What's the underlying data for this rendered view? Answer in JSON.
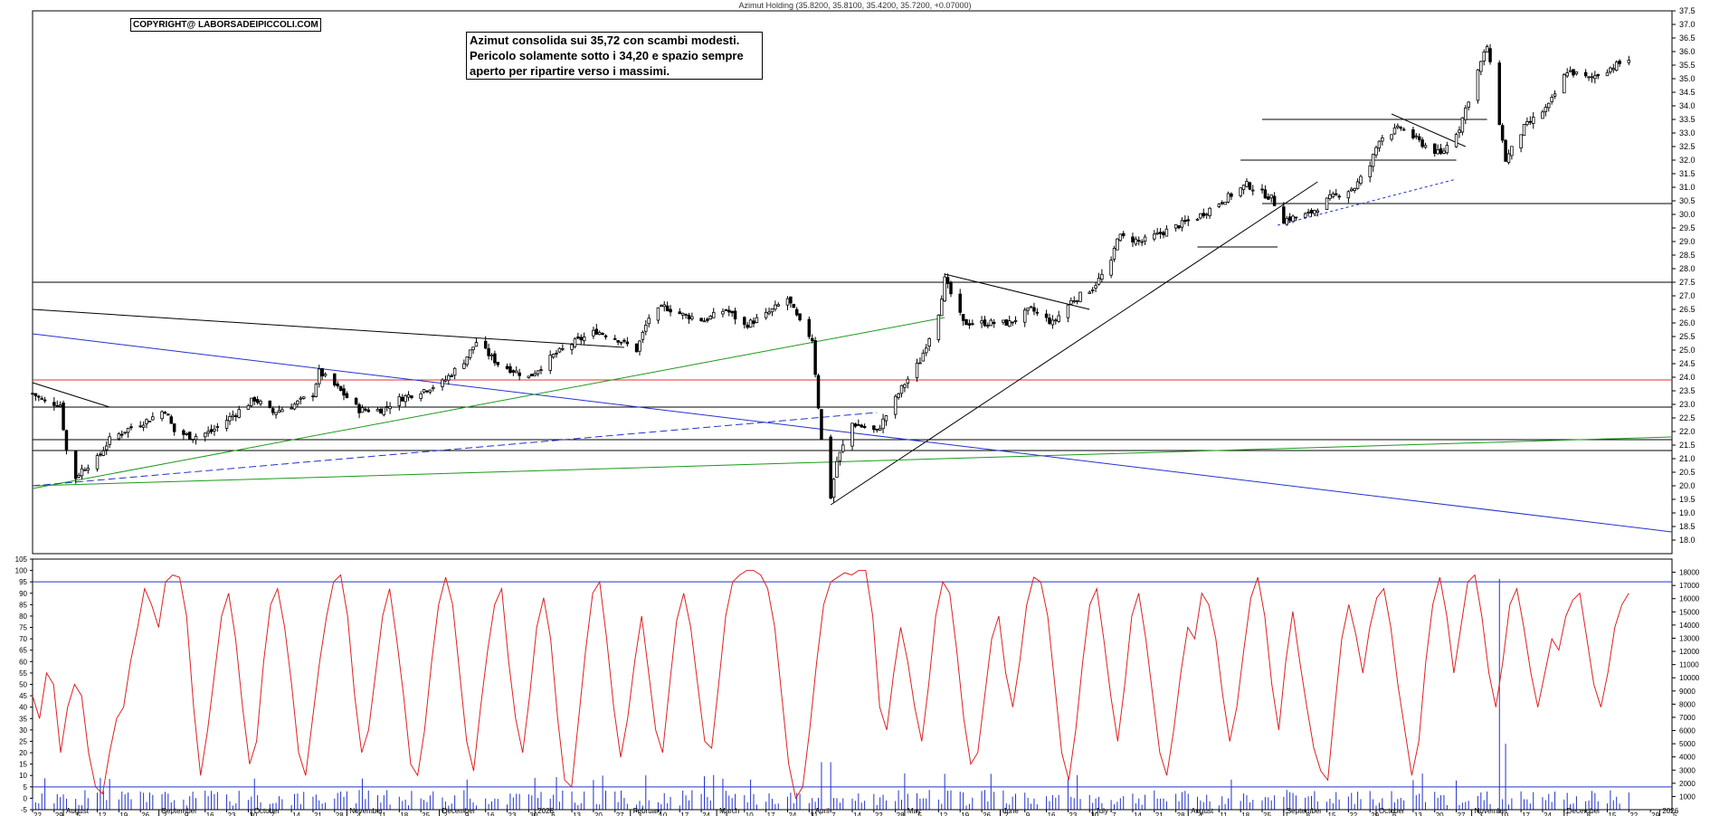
{
  "header": {
    "title": "Azimut Holding (35.8200, 35.8100, 35.4200, 35.7200, +0.07000)"
  },
  "copyright": "COPYRIGHT@ LABORSADEIPICCOLI.COM",
  "annotation": {
    "lines": [
      "Azimut consolida sui 35,72 con scambi modesti.",
      "Pericolo solamente sotto i 34,20 e spazio sempre",
      "aperto per ripartire verso i massimi."
    ]
  },
  "chart_data": [
    {
      "type": "candlestick",
      "title": "Azimut Holding (35.8200, 35.8100, 35.4200, 35.7200, +0.07000)",
      "ylim": [
        17.5,
        37.5
      ],
      "y_ticks": [
        18.0,
        18.5,
        19.0,
        19.5,
        20.0,
        20.5,
        21.0,
        21.5,
        22.0,
        22.5,
        23.0,
        23.5,
        24.0,
        24.5,
        25.0,
        25.5,
        26.0,
        26.5,
        27.0,
        27.5,
        28.0,
        28.5,
        29.0,
        29.5,
        30.0,
        30.5,
        31.0,
        31.5,
        32.0,
        32.5,
        33.0,
        33.5,
        34.0,
        34.5,
        35.0,
        35.5,
        36.0,
        36.5,
        37.0,
        37.5
      ],
      "price_path": [
        [
          "2024-07-22",
          23.4
        ],
        [
          "2024-07-26",
          23.1
        ],
        [
          "2024-07-31",
          23.0
        ],
        [
          "2024-08-02",
          21.3
        ],
        [
          "2024-08-05",
          20.3
        ],
        [
          "2024-08-07",
          20.6
        ],
        [
          "2024-08-12",
          21.0
        ],
        [
          "2024-08-16",
          21.7
        ],
        [
          "2024-08-22",
          22.1
        ],
        [
          "2024-08-28",
          22.4
        ],
        [
          "2024-09-03",
          22.8
        ],
        [
          "2024-09-06",
          22.0
        ],
        [
          "2024-09-12",
          21.8
        ],
        [
          "2024-09-18",
          22.0
        ],
        [
          "2024-09-25",
          22.6
        ],
        [
          "2024-10-02",
          23.2
        ],
        [
          "2024-10-08",
          22.7
        ],
        [
          "2024-10-15",
          23.0
        ],
        [
          "2024-10-21",
          23.4
        ],
        [
          "2024-10-23",
          24.2
        ],
        [
          "2024-10-29",
          23.6
        ],
        [
          "2024-11-05",
          22.8
        ],
        [
          "2024-11-12",
          22.8
        ],
        [
          "2024-11-18",
          23.2
        ],
        [
          "2024-11-25",
          23.5
        ],
        [
          "2024-12-02",
          23.8
        ],
        [
          "2024-12-09",
          24.6
        ],
        [
          "2024-12-13",
          25.3
        ],
        [
          "2024-12-20",
          24.5
        ],
        [
          "2024-12-30",
          24.0
        ],
        [
          "2025-01-07",
          24.8
        ],
        [
          "2025-01-14",
          25.3
        ],
        [
          "2025-01-21",
          25.7
        ],
        [
          "2025-01-28",
          25.4
        ],
        [
          "2025-02-03",
          25.0
        ],
        [
          "2025-02-07",
          26.2
        ],
        [
          "2025-02-12",
          26.6
        ],
        [
          "2025-02-18",
          26.3
        ],
        [
          "2025-02-25",
          26.1
        ],
        [
          "2025-03-04",
          26.5
        ],
        [
          "2025-03-10",
          25.9
        ],
        [
          "2025-03-17",
          26.3
        ],
        [
          "2025-03-24",
          26.9
        ],
        [
          "2025-03-28",
          26.0
        ],
        [
          "2025-04-01",
          25.4
        ],
        [
          "2025-04-04",
          21.7
        ],
        [
          "2025-04-07",
          19.6
        ],
        [
          "2025-04-09",
          20.9
        ],
        [
          "2025-04-14",
          22.3
        ],
        [
          "2025-04-22",
          22.0
        ],
        [
          "2025-04-30",
          23.6
        ],
        [
          "2025-05-06",
          24.6
        ],
        [
          "2025-05-12",
          26.4
        ],
        [
          "2025-05-14",
          27.6
        ],
        [
          "2025-05-20",
          26.0
        ],
        [
          "2025-05-28",
          26.0
        ],
        [
          "2025-06-04",
          26.0
        ],
        [
          "2025-06-11",
          26.5
        ],
        [
          "2025-06-18",
          26.0
        ],
        [
          "2025-06-24",
          26.8
        ],
        [
          "2025-07-01",
          27.3
        ],
        [
          "2025-07-07",
          28.2
        ],
        [
          "2025-07-09",
          29.2
        ],
        [
          "2025-07-17",
          29.0
        ],
        [
          "2025-07-25",
          29.4
        ],
        [
          "2025-08-04",
          29.9
        ],
        [
          "2025-08-12",
          30.5
        ],
        [
          "2025-08-20",
          31.1
        ],
        [
          "2025-08-28",
          30.6
        ],
        [
          "2025-09-01",
          29.8
        ],
        [
          "2025-09-09",
          30.0
        ],
        [
          "2025-09-16",
          30.6
        ],
        [
          "2025-09-24",
          31.0
        ],
        [
          "2025-09-29",
          31.8
        ],
        [
          "2025-10-02",
          32.8
        ],
        [
          "2025-10-09",
          33.2
        ],
        [
          "2025-10-16",
          32.6
        ],
        [
          "2025-10-22",
          32.2
        ],
        [
          "2025-10-28",
          33.2
        ],
        [
          "2025-11-03",
          35.3
        ],
        [
          "2025-11-06",
          36.2
        ],
        [
          "2025-11-12",
          32.0
        ],
        [
          "2025-11-18",
          33.2
        ],
        [
          "2025-11-26",
          34.0
        ],
        [
          "2025-12-02",
          35.3
        ],
        [
          "2025-12-09",
          35.0
        ],
        [
          "2025-12-16",
          35.4
        ],
        [
          "2025-12-22",
          35.72
        ]
      ],
      "last": {
        "open": 35.82,
        "high": 35.81,
        "low": 35.42,
        "close": 35.72,
        "change": 0.07
      }
    },
    {
      "type": "line",
      "name": "stochastic",
      "ylim": [
        -5,
        105
      ],
      "y_ticks": [
        -5,
        0,
        5,
        10,
        15,
        20,
        25,
        30,
        35,
        40,
        45,
        50,
        55,
        60,
        65,
        70,
        75,
        80,
        85,
        90,
        95,
        100,
        105
      ],
      "levels": [
        5,
        95
      ],
      "values": [
        45,
        35,
        55,
        50,
        20,
        40,
        50,
        45,
        20,
        5,
        2,
        20,
        35,
        40,
        60,
        75,
        92,
        85,
        75,
        95,
        98,
        97,
        80,
        40,
        10,
        30,
        55,
        80,
        90,
        70,
        40,
        15,
        25,
        60,
        85,
        92,
        75,
        50,
        20,
        10,
        35,
        60,
        80,
        95,
        98,
        80,
        45,
        20,
        30,
        55,
        80,
        92,
        70,
        45,
        15,
        10,
        30,
        60,
        85,
        97,
        85,
        55,
        25,
        12,
        40,
        65,
        85,
        92,
        60,
        35,
        20,
        45,
        75,
        88,
        70,
        35,
        8,
        5,
        35,
        65,
        90,
        95,
        70,
        40,
        18,
        35,
        60,
        80,
        55,
        30,
        20,
        50,
        78,
        90,
        75,
        50,
        25,
        22,
        50,
        80,
        95,
        98,
        100,
        100,
        98,
        92,
        75,
        45,
        15,
        0,
        5,
        30,
        60,
        85,
        95,
        97,
        99,
        98,
        100,
        100,
        80,
        40,
        30,
        55,
        75,
        60,
        40,
        25,
        50,
        80,
        95,
        90,
        65,
        35,
        15,
        20,
        45,
        70,
        80,
        55,
        40,
        60,
        85,
        97,
        95,
        80,
        50,
        20,
        8,
        30,
        60,
        85,
        92,
        70,
        45,
        25,
        50,
        80,
        90,
        70,
        45,
        20,
        10,
        30,
        55,
        75,
        70,
        90,
        85,
        70,
        45,
        25,
        40,
        65,
        88,
        97,
        80,
        50,
        30,
        60,
        82,
        60,
        40,
        22,
        12,
        8,
        40,
        70,
        85,
        72,
        55,
        75,
        88,
        92,
        75,
        50,
        30,
        10,
        25,
        60,
        85,
        97,
        80,
        55,
        75,
        95,
        98,
        80,
        55,
        40,
        60,
        85,
        92,
        75,
        55,
        40,
        55,
        70,
        65,
        80,
        87,
        90,
        70,
        50,
        40,
        55,
        75,
        85,
        90
      ]
    },
    {
      "type": "bar",
      "name": "volume",
      "ylim": [
        0,
        19000
      ],
      "y_ticks": [
        1000,
        2000,
        3000,
        4000,
        5000,
        6000,
        7000,
        8000,
        9000,
        10000,
        11000,
        12000,
        13000,
        14000,
        15000,
        16000,
        17000,
        18000
      ]
    }
  ],
  "x_axis": {
    "day_ticks": [
      "22",
      "29",
      "5",
      "12",
      "19",
      "26",
      "2",
      "9",
      "16",
      "23",
      "30",
      "7",
      "14",
      "21",
      "28",
      "4",
      "11",
      "18",
      "25",
      "2",
      "9",
      "16",
      "23",
      "30",
      "6",
      "13",
      "20",
      "27",
      "3",
      "10",
      "17",
      "24",
      "3",
      "10",
      "17",
      "24",
      "31",
      "7",
      "14",
      "22",
      "28",
      "5",
      "12",
      "19",
      "26",
      "2",
      "9",
      "16",
      "23",
      "30",
      "7",
      "14",
      "21",
      "28",
      "4",
      "11",
      "18",
      "25",
      "1",
      "8",
      "15",
      "22",
      "29",
      "6",
      "13",
      "20",
      "27",
      "3",
      "10",
      "17",
      "24",
      "1",
      "8",
      "15",
      "22",
      "29",
      "5"
    ],
    "month_labels": [
      "August",
      "September",
      "October",
      "November",
      "December",
      "2025",
      "February",
      "March",
      "April",
      "May",
      "June",
      "July",
      "August",
      "September",
      "October",
      "November",
      "December",
      "2026"
    ]
  }
}
